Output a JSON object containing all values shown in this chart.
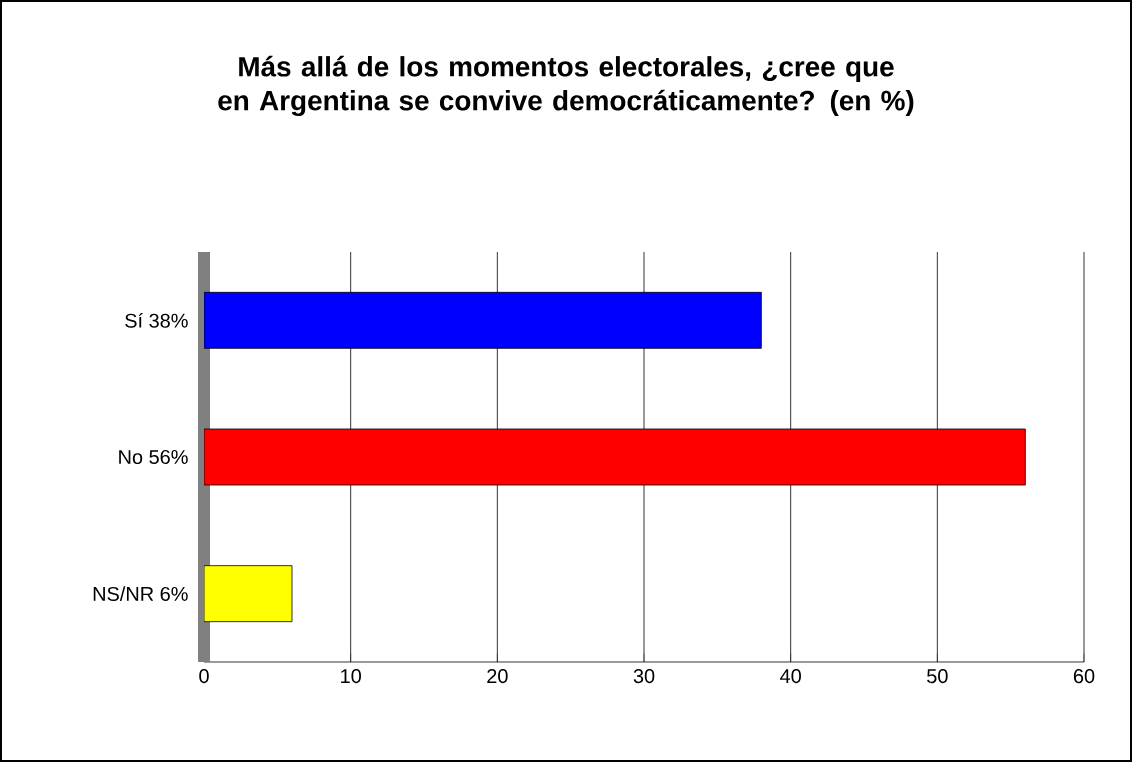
{
  "chart_data": {
    "type": "bar",
    "orientation": "horizontal",
    "title": "Más allá de los momentos electorales, ¿cree que en Argentina se convive democráticamente? (en %)",
    "categories": [
      "Sí 38%",
      "No 56%",
      "NS/NR 6%"
    ],
    "values": [
      38,
      56,
      6
    ],
    "colors": [
      "#0000ff",
      "#ff0000",
      "#ffff00"
    ],
    "xlim": [
      0,
      60
    ],
    "xticks": [
      0,
      10,
      20,
      30,
      40,
      50,
      60
    ],
    "grid": "x"
  }
}
